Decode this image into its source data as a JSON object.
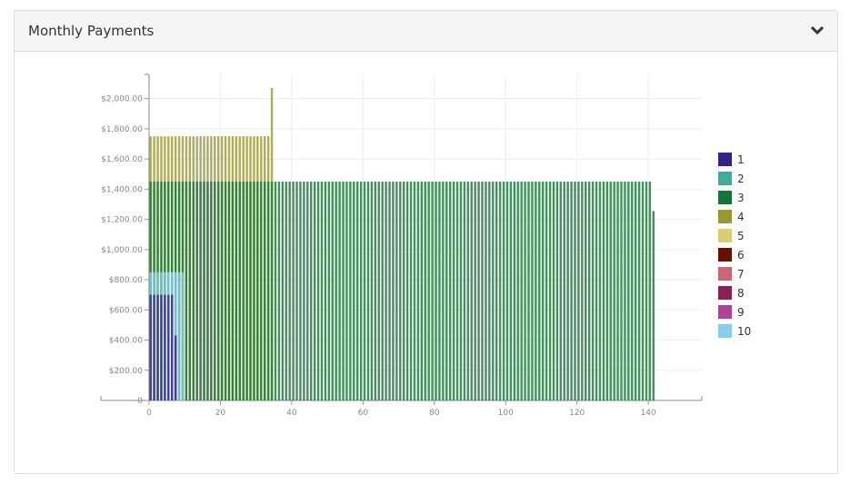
{
  "header": {
    "title": "Monthly Payments"
  },
  "chart_data": {
    "type": "bar",
    "overlap": true,
    "xlim": [
      -13.5,
      155
    ],
    "xticks": [
      0,
      20,
      40,
      60,
      80,
      100,
      120,
      140
    ],
    "ylim": [
      0,
      2160
    ],
    "yticks": [
      0,
      {
        "value": 200,
        "label": "$200.00"
      },
      {
        "value": 400,
        "label": "$400.00"
      },
      {
        "value": 600,
        "label": "$600.00"
      },
      {
        "value": 800,
        "label": "$800.00"
      },
      {
        "value": 1000,
        "label": "$1,000.00"
      },
      {
        "value": 1200,
        "label": "$1,200.00"
      },
      {
        "value": 1400,
        "label": "$1,400.00"
      },
      {
        "value": 1600,
        "label": "$1,600.00"
      },
      {
        "value": 1800,
        "label": "$1,800.00"
      },
      {
        "value": 2000,
        "label": "$2,000.00"
      }
    ],
    "grid": true,
    "series": [
      {
        "name": "1",
        "color": "#332288",
        "x": [
          0,
          1,
          2,
          3,
          4,
          5,
          6,
          7
        ],
        "values": [
          700,
          700,
          700,
          700,
          700,
          700,
          700,
          430
        ]
      },
      {
        "name": "2",
        "color": "#44aa99",
        "x": [],
        "values": []
      },
      {
        "name": "3",
        "color": "#117733",
        "x": [
          0,
          1,
          2,
          3,
          4,
          5,
          6,
          7,
          8,
          9,
          10,
          11,
          12,
          13,
          14,
          15,
          16,
          17,
          18,
          19,
          20,
          21,
          22,
          23,
          24,
          25,
          26,
          27,
          28,
          29,
          30,
          31,
          32,
          33,
          34,
          35,
          36,
          37,
          38,
          39,
          40,
          41,
          42,
          43,
          44,
          45,
          46,
          47,
          48,
          49,
          50,
          51,
          52,
          53,
          54,
          55,
          56,
          57,
          58,
          59,
          60,
          61,
          62,
          63,
          64,
          65,
          66,
          67,
          68,
          69,
          70,
          71,
          72,
          73,
          74,
          75,
          76,
          77,
          78,
          79,
          80,
          81,
          82,
          83,
          84,
          85,
          86,
          87,
          88,
          89,
          90,
          91,
          92,
          93,
          94,
          95,
          96,
          97,
          98,
          99,
          100,
          101,
          102,
          103,
          104,
          105,
          106,
          107,
          108,
          109,
          110,
          111,
          112,
          113,
          114,
          115,
          116,
          117,
          118,
          119,
          120,
          121,
          122,
          123,
          124,
          125,
          126,
          127,
          128,
          129,
          130,
          131,
          132,
          133,
          134,
          135,
          136,
          137,
          138,
          139,
          140,
          141
        ],
        "values": [
          1450,
          1450,
          1450,
          1450,
          1450,
          1450,
          1450,
          1450,
          1450,
          1450,
          1450,
          1450,
          1450,
          1450,
          1450,
          1450,
          1450,
          1450,
          1450,
          1450,
          1450,
          1450,
          1450,
          1450,
          1450,
          1450,
          1450,
          1450,
          1450,
          1450,
          1450,
          1450,
          1450,
          1450,
          1450,
          1450,
          1450,
          1450,
          1450,
          1450,
          1450,
          1450,
          1450,
          1450,
          1450,
          1450,
          1450,
          1450,
          1450,
          1450,
          1450,
          1450,
          1450,
          1450,
          1450,
          1450,
          1450,
          1450,
          1450,
          1450,
          1450,
          1450,
          1450,
          1450,
          1450,
          1450,
          1450,
          1450,
          1450,
          1450,
          1450,
          1450,
          1450,
          1450,
          1450,
          1450,
          1450,
          1450,
          1450,
          1450,
          1450,
          1450,
          1450,
          1450,
          1450,
          1450,
          1450,
          1450,
          1450,
          1450,
          1450,
          1450,
          1450,
          1450,
          1450,
          1450,
          1450,
          1450,
          1450,
          1450,
          1450,
          1450,
          1450,
          1450,
          1450,
          1450,
          1450,
          1450,
          1450,
          1450,
          1450,
          1450,
          1450,
          1450,
          1450,
          1450,
          1450,
          1450,
          1450,
          1450,
          1450,
          1450,
          1450,
          1450,
          1450,
          1450,
          1450,
          1450,
          1450,
          1450,
          1450,
          1450,
          1450,
          1450,
          1450,
          1450,
          1450,
          1450,
          1450,
          1450,
          1450,
          1255
        ]
      },
      {
        "name": "4",
        "color": "#999933",
        "x": [
          0,
          1,
          2,
          3,
          4,
          5,
          6,
          7,
          8,
          9,
          10,
          11,
          12,
          13,
          14,
          15,
          16,
          17,
          18,
          19,
          20,
          21,
          22,
          23,
          24,
          25,
          26,
          27,
          28,
          29,
          30,
          31,
          32,
          33,
          34
        ],
        "values": [
          1750,
          1750,
          1750,
          1750,
          1750,
          1750,
          1750,
          1750,
          1750,
          1750,
          1750,
          1750,
          1750,
          1750,
          1750,
          1750,
          1750,
          1750,
          1750,
          1750,
          1750,
          1750,
          1750,
          1750,
          1750,
          1750,
          1750,
          1750,
          1750,
          1750,
          1750,
          1750,
          1750,
          1750,
          2070
        ]
      },
      {
        "name": "5",
        "color": "#ddcc77",
        "x": [],
        "values": []
      },
      {
        "name": "6",
        "color": "#661100",
        "x": [],
        "values": []
      },
      {
        "name": "7",
        "color": "#cc6677",
        "x": [],
        "values": []
      },
      {
        "name": "8",
        "color": "#882255",
        "x": [],
        "values": []
      },
      {
        "name": "9",
        "color": "#aa4499",
        "x": [],
        "values": []
      },
      {
        "name": "10",
        "color": "#88ccee",
        "x": [
          0,
          1,
          2,
          3,
          4,
          5,
          6,
          7,
          8,
          9
        ],
        "values": [
          850,
          850,
          850,
          850,
          850,
          850,
          850,
          850,
          850,
          850
        ]
      }
    ]
  }
}
